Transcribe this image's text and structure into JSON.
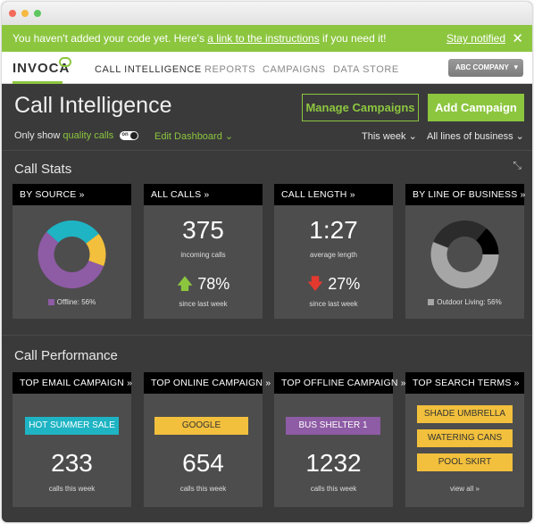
{
  "banner": {
    "msg_before": "You haven't added your code yet. Here's ",
    "link_text": "a link to the instructions",
    "msg_after": " if you need it!",
    "stay_notified": "Stay notified",
    "close": "✕"
  },
  "nav": {
    "logo": "INVOCA",
    "items": [
      "CALL INTELLIGENCE",
      "REPORTS",
      "CAMPAIGNS",
      "DATA STORE"
    ],
    "company": "ABC COMPANY",
    "company_caret": "▾"
  },
  "header": {
    "title": "Call Intelligence",
    "manage_btn": "Manage Campaigns",
    "add_btn": "Add Campaign"
  },
  "filters": {
    "only_show": "Only show",
    "quality_calls": "quality calls",
    "toggle_label": "on",
    "edit_dashboard": "Edit Dashboard ⌄",
    "period": "This week ⌄",
    "business": "All lines of business ⌄"
  },
  "call_stats": {
    "title": "Call Stats",
    "expand_icon": "⤡",
    "by_source": {
      "label": "BY SOURCE  »",
      "legend": "Offline: 56%",
      "legend_color": "#8e5ba5",
      "slices": [
        {
          "value": 56,
          "color": "#8e5ba5"
        },
        {
          "value": 28,
          "color": "#1eb4c4"
        },
        {
          "value": 16,
          "color": "#f2c03c"
        }
      ]
    },
    "all_calls": {
      "label": "ALL CALLS  »",
      "value": "375",
      "sub": "incoming calls",
      "change": "78%",
      "since": "since last week"
    },
    "call_length": {
      "label": "CALL LENGTH  »",
      "value": "1:27",
      "sub": "average length",
      "change": "27%",
      "since": "since last week"
    },
    "by_line": {
      "label": "BY LINE OF BUSINESS »",
      "legend": "Outdoor Living: 56%",
      "legend_color": "#a6a6a6",
      "slices": [
        {
          "value": 56,
          "color": "#a6a6a6"
        },
        {
          "value": 30,
          "color": "#2b2b2b"
        },
        {
          "value": 14,
          "color": "#000000"
        }
      ]
    }
  },
  "call_performance": {
    "title": "Call Performance",
    "email": {
      "label": "TOP EMAIL CAMPAIGN  »",
      "tag": "HOT SUMMER SALE",
      "value": "233",
      "sub": "calls this week",
      "color": "#1eb4c4"
    },
    "online": {
      "label": "TOP ONLINE CAMPAIGN »",
      "tag": "GOOGLE",
      "value": "654",
      "sub": "calls this week",
      "color": "#f2c03c"
    },
    "offline": {
      "label": "TOP OFFLINE CAMPAIGN »",
      "tag": "BUS SHELTER 1",
      "value": "1232",
      "sub": "calls this week",
      "color": "#8e5ba5"
    },
    "search": {
      "label": "TOP SEARCH TERMS  »",
      "terms": [
        "SHADE UMBRELLA",
        "WATERING CANS",
        "POOL SKIRT"
      ],
      "view_all": "view all »",
      "color": "#f2c03c"
    }
  },
  "colors": {
    "accent": "#8cc63f",
    "up": "#8cc63f",
    "down": "#e3392f"
  }
}
